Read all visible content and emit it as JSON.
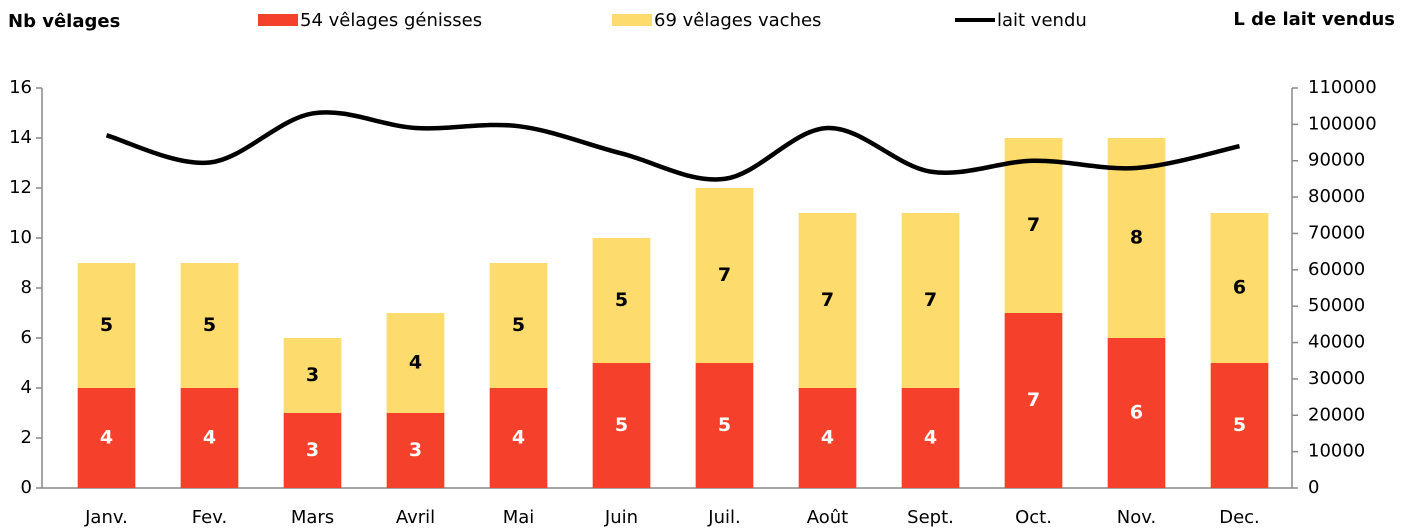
{
  "chart_data": {
    "type": "bar",
    "title": "Nb vêlages",
    "y2_title": "L de lait vendus",
    "categories": [
      "Janv.",
      "Fev.",
      "Mars",
      "Avril",
      "Mai",
      "Juin",
      "Juil.",
      "Août",
      "Sept.",
      "Oct.",
      "Nov.",
      "Dec."
    ],
    "series": [
      {
        "name": "54 vêlages génisses",
        "color": "#f5412b",
        "label_color": "#ffffff",
        "values": [
          4,
          4,
          3,
          3,
          4,
          5,
          5,
          4,
          4,
          7,
          6,
          5
        ]
      },
      {
        "name": "69 vêlages vaches",
        "color": "#fddb6d",
        "label_color": "#000000",
        "values": [
          5,
          5,
          3,
          4,
          5,
          5,
          7,
          7,
          7,
          7,
          8,
          6
        ]
      },
      {
        "name": "lait vendu",
        "type": "line",
        "axis": "y2",
        "color": "#000000",
        "values": [
          97000,
          89500,
          103000,
          99000,
          99500,
          92000,
          85000,
          99000,
          87000,
          90000,
          88000,
          94000
        ]
      }
    ],
    "stacked": true,
    "ylim": [
      0,
      16
    ],
    "yticks": [
      0,
      2,
      4,
      6,
      8,
      10,
      12,
      14,
      16
    ],
    "y2lim": [
      0,
      110000
    ],
    "y2ticks": [
      0,
      10000,
      20000,
      30000,
      40000,
      50000,
      60000,
      70000,
      80000,
      90000,
      100000,
      110000
    ],
    "grid": false
  }
}
